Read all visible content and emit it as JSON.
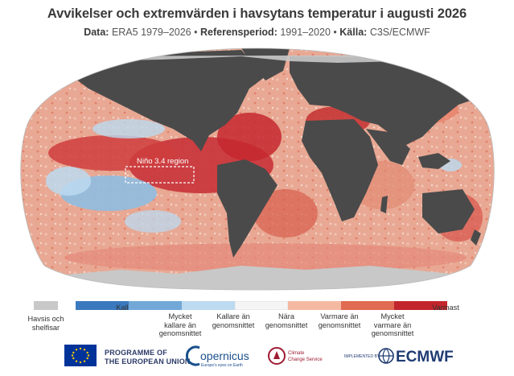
{
  "header": {
    "title": "Avvikelser och extremvärden i havsytans temperatur i augusti 2026",
    "subtitle_data_label": "Data:",
    "subtitle_data_value": "ERA5 1979–2026",
    "subtitle_ref_label": "Referensperiod:",
    "subtitle_ref_value": "1991–2020",
    "subtitle_source_label": "Källa:",
    "subtitle_source_value": "C3S/ECMWF",
    "separator": "•"
  },
  "map": {
    "region_label": "Niño 3.4 region",
    "colors": {
      "ocean_background": "#e8c4b8",
      "land": "#4a4a4a",
      "ice": "#c8c8c8"
    }
  },
  "legend": {
    "items": [
      {
        "label_lines": [
          "Havsis och",
          "shelfisar"
        ],
        "color": "#c8c8c8"
      },
      {
        "label_lines": [
          "Kallast"
        ],
        "color": "#3b79bf"
      },
      {
        "label_lines": [
          "Mycket",
          "kallare än",
          "genomsnittet"
        ],
        "color": "#72a8d8"
      },
      {
        "label_lines": [
          "Kallare än",
          "genomsnittet"
        ],
        "color": "#bcdaf0"
      },
      {
        "label_lines": [
          "Nära",
          "genomsnittet"
        ],
        "color": "#f5f5f5"
      },
      {
        "label_lines": [
          "Varmare än",
          "genomsnittet"
        ],
        "color": "#f5b9a2"
      },
      {
        "label_lines": [
          "Mycket",
          "varmare än",
          "genomsnittet"
        ],
        "color": "#e06a52"
      },
      {
        "label_lines": [
          "Varmast"
        ],
        "color": "#c2262c"
      }
    ]
  },
  "footer": {
    "eu_line1": "PROGRAMME OF",
    "eu_line2": "THE EUROPEAN UNION",
    "copernicus_name": "opernicus",
    "copernicus_tagline": "Europe's eyes on Earth",
    "c3s_line1": "Climate",
    "c3s_line2": "Change Service",
    "implemented_by": "IMPLEMENTED BY",
    "ecmwf": "ECMWF"
  }
}
